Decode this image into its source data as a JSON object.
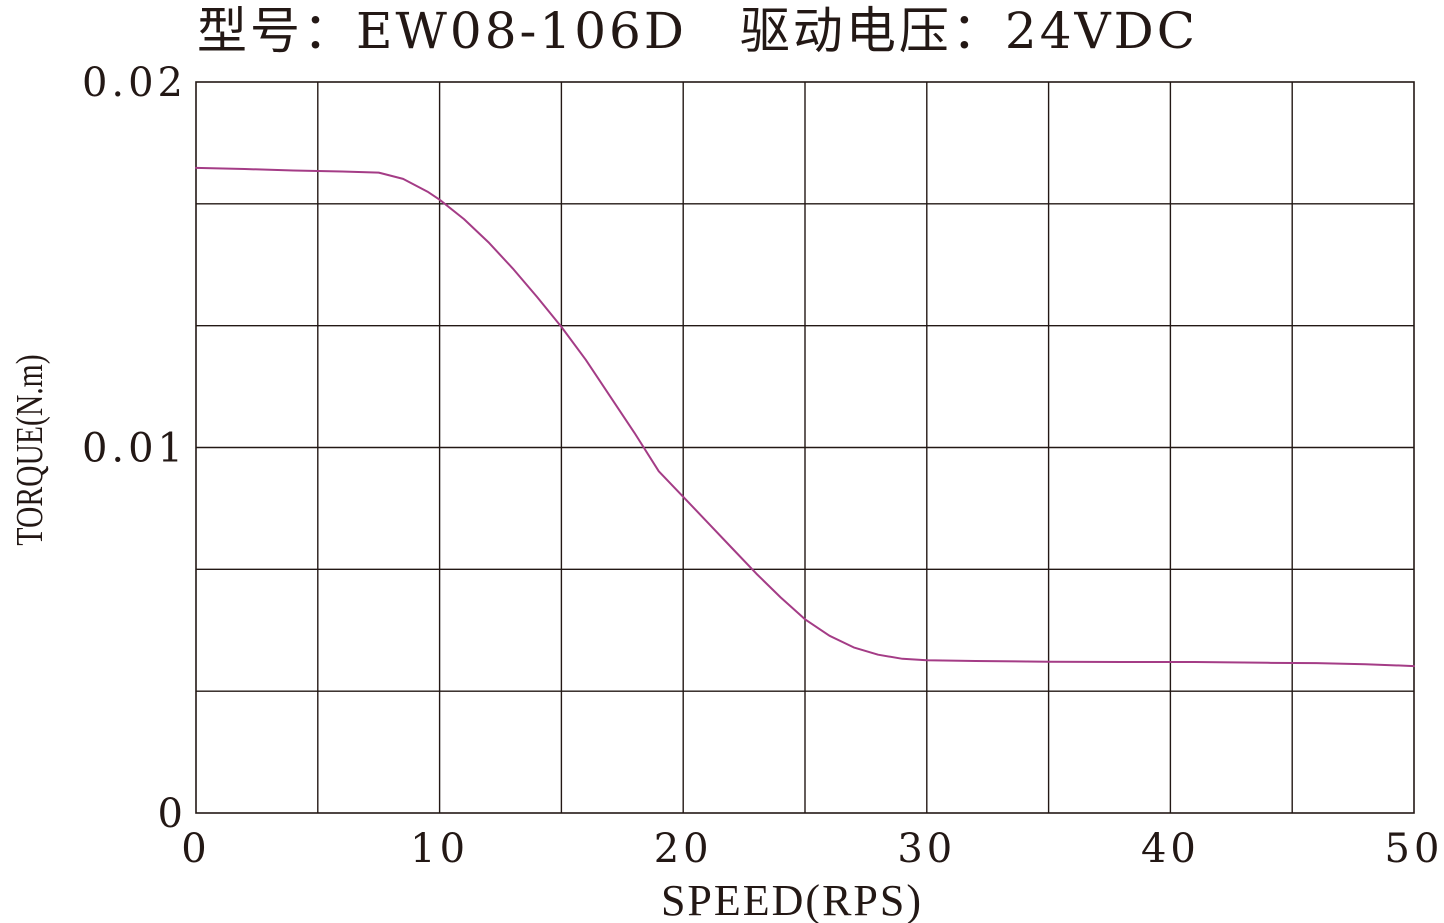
{
  "chart_data": {
    "type": "line",
    "title": "型号：EW08-106D　驱动电压：24VDC",
    "xlabel": "SPEED(RPS)",
    "ylabel": "TORQUE(N.m)",
    "xlim": [
      0,
      50
    ],
    "ylim": [
      0,
      0.02
    ],
    "x_major_ticks": [
      0,
      10,
      20,
      30,
      40,
      50
    ],
    "x_tick_labels": [
      "0",
      "10",
      "20",
      "30",
      "40",
      "50"
    ],
    "x_grid_step": 5,
    "y_major_ticks": [
      0,
      0.01,
      0.02
    ],
    "y_tick_labels": [
      "0",
      "0.01",
      "0.02"
    ],
    "y_grid_count": 6,
    "grid": true,
    "legend": "none",
    "series": [
      {
        "color": "#a43c86",
        "x": [
          0,
          2,
          4,
          6,
          7.5,
          8.5,
          9.5,
          10,
          11,
          12,
          13,
          14,
          15,
          16,
          17,
          18,
          19,
          20,
          21,
          22,
          23,
          24,
          25,
          26,
          27,
          28,
          29,
          30,
          32,
          35,
          38,
          41,
          44,
          46,
          48,
          50
        ],
        "y": [
          0.01765,
          0.01762,
          0.01758,
          0.01755,
          0.01752,
          0.01735,
          0.017,
          0.01678,
          0.01625,
          0.01562,
          0.0149,
          0.01412,
          0.0133,
          0.0124,
          0.0114,
          0.0104,
          0.00935,
          0.00865,
          0.00795,
          0.00725,
          0.00655,
          0.0059,
          0.0053,
          0.00485,
          0.00453,
          0.00433,
          0.00422,
          0.00418,
          0.00416,
          0.00414,
          0.00413,
          0.00413,
          0.00411,
          0.0041,
          0.00407,
          0.00402
        ]
      }
    ]
  }
}
